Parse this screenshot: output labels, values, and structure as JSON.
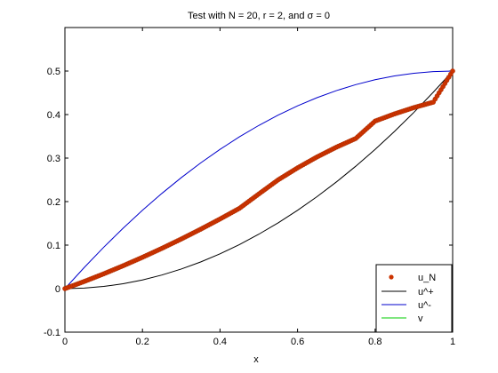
{
  "chart_data": {
    "type": "line",
    "title": "Test with N = 20, r = 2, and σ = 0",
    "xlabel": "x",
    "ylabel": "",
    "xlim": [
      0,
      1
    ],
    "ylim": [
      -0.1,
      0.6
    ],
    "x_ticks": [
      0,
      0.2,
      0.4,
      0.6,
      0.8,
      1
    ],
    "x_tick_labels": [
      "0",
      "0.2",
      "0.4",
      "0.6",
      "0.8",
      "1"
    ],
    "y_ticks": [
      -0.1,
      0,
      0.1,
      0.2,
      0.3,
      0.4,
      0.5
    ],
    "y_tick_labels": [
      "-0.1",
      "0",
      "0.1",
      "0.2",
      "0.3",
      "0.4",
      "0.5"
    ],
    "grid": false,
    "legend_position": "bottom-right",
    "x": [
      0,
      0.05,
      0.1,
      0.15,
      0.2,
      0.25,
      0.3,
      0.35,
      0.4,
      0.45,
      0.5,
      0.55,
      0.6,
      0.65,
      0.7,
      0.75,
      0.8,
      0.85,
      0.9,
      0.95,
      1
    ],
    "series": [
      {
        "name": "u_N",
        "style": "markers",
        "color": "#cc3300",
        "values": [
          0,
          0.0165,
          0.034,
          0.0525,
          0.072,
          0.0925,
          0.114,
          0.1365,
          0.16,
          0.1845,
          0.2175,
          0.25,
          0.2775,
          0.3025,
          0.325,
          0.345,
          0.385,
          0.4015,
          0.416,
          0.4285,
          0.5
        ]
      },
      {
        "name": "u^+",
        "style": "line",
        "color": "#000000",
        "values": [
          0,
          0.00125,
          0.005,
          0.01125,
          0.02,
          0.03125,
          0.045,
          0.06125,
          0.08,
          0.10125,
          0.125,
          0.15125,
          0.18,
          0.21125,
          0.245,
          0.28125,
          0.32,
          0.36125,
          0.405,
          0.45125,
          0.5
        ]
      },
      {
        "name": "u^-",
        "style": "line",
        "color": "#0000cc",
        "values": [
          0,
          0.04875,
          0.095,
          0.13875,
          0.18,
          0.21875,
          0.255,
          0.28875,
          0.32,
          0.34875,
          0.375,
          0.39875,
          0.42,
          0.43875,
          0.455,
          0.46875,
          0.48,
          0.48875,
          0.495,
          0.49875,
          0.5
        ]
      },
      {
        "name": "v",
        "style": "line",
        "color": "#00cc00",
        "values": [
          0,
          0.0165,
          0.034,
          0.0525,
          0.072,
          0.0925,
          0.114,
          0.1365,
          0.16,
          0.1845,
          0.2175,
          0.25,
          0.2775,
          0.3025,
          0.325,
          0.345,
          0.385,
          0.4015,
          0.416,
          0.4285,
          0.5
        ]
      }
    ]
  }
}
